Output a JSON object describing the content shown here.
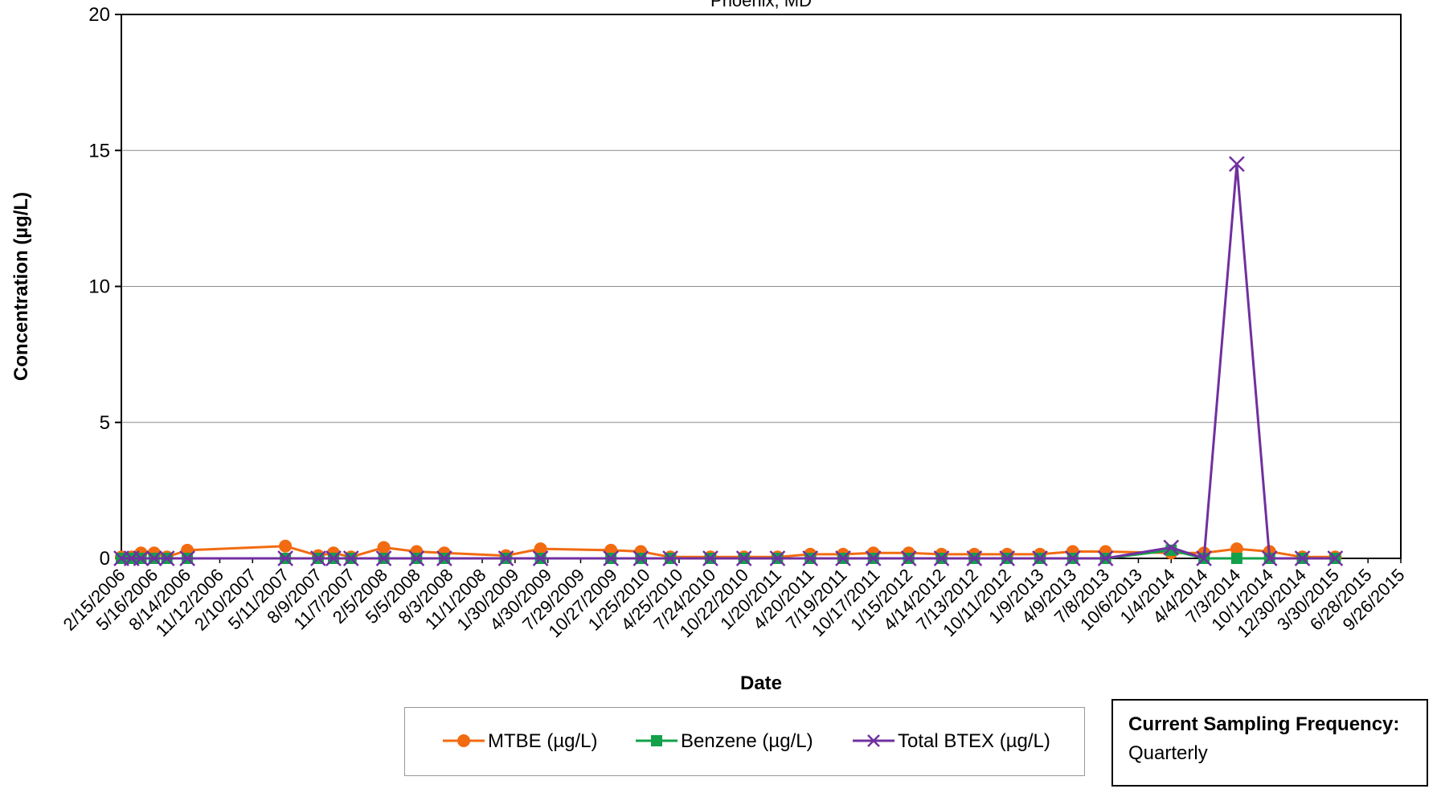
{
  "chart_data": {
    "type": "line",
    "title": "Phoenix, MD",
    "xlabel": "Date",
    "ylabel": "Concentration (µg/L)",
    "ylim": [
      0,
      20
    ],
    "yticks": [
      0,
      5,
      10,
      15,
      20
    ],
    "xlim": [
      "2/15/2006",
      "9/26/2015"
    ],
    "xticks": [
      "2/15/2006",
      "5/16/2006",
      "8/14/2006",
      "11/12/2006",
      "2/10/2007",
      "5/11/2007",
      "8/9/2007",
      "11/7/2007",
      "2/5/2008",
      "5/5/2008",
      "8/3/2008",
      "11/1/2008",
      "1/30/2009",
      "4/30/2009",
      "7/29/2009",
      "10/27/2009",
      "1/25/2010",
      "4/25/2010",
      "7/24/2010",
      "10/22/2010",
      "1/20/2011",
      "4/20/2011",
      "7/19/2011",
      "10/17/2011",
      "1/15/2012",
      "4/14/2012",
      "7/13/2012",
      "10/11/2012",
      "1/9/2013",
      "4/9/2013",
      "7/8/2013",
      "10/6/2013",
      "1/4/2014",
      "4/4/2014",
      "7/3/2014",
      "10/1/2014",
      "12/30/2014",
      "3/30/2015",
      "6/28/2015",
      "9/26/2015"
    ],
    "grid": "horizontal",
    "series": [
      {
        "name": "MTBE (µg/L)",
        "color": "#f26b10",
        "marker": "circle",
        "points": [
          [
            "2/15/2006",
            0.05
          ],
          [
            "3/15/2006",
            0.05
          ],
          [
            "4/10/2006",
            0.2
          ],
          [
            "5/16/2006",
            0.2
          ],
          [
            "6/20/2006",
            0.05
          ],
          [
            "8/15/2006",
            0.3
          ],
          [
            "5/11/2007",
            0.45
          ],
          [
            "8/9/2007",
            0.1
          ],
          [
            "9/20/2007",
            0.2
          ],
          [
            "11/7/2007",
            0.05
          ],
          [
            "2/5/2008",
            0.4
          ],
          [
            "5/5/2008",
            0.25
          ],
          [
            "7/20/2008",
            0.2
          ],
          [
            "1/5/2009",
            0.1
          ],
          [
            "4/10/2009",
            0.35
          ],
          [
            "10/20/2009",
            0.3
          ],
          [
            "1/10/2010",
            0.25
          ],
          [
            "4/1/2010",
            0.05
          ],
          [
            "7/20/2010",
            0.05
          ],
          [
            "10/20/2010",
            0.05
          ],
          [
            "1/20/2011",
            0.05
          ],
          [
            "4/20/2011",
            0.15
          ],
          [
            "7/19/2011",
            0.15
          ],
          [
            "10/10/2011",
            0.2
          ],
          [
            "1/15/2012",
            0.2
          ],
          [
            "4/14/2012",
            0.15
          ],
          [
            "7/13/2012",
            0.15
          ],
          [
            "10/11/2012",
            0.15
          ],
          [
            "1/9/2013",
            0.15
          ],
          [
            "4/9/2013",
            0.25
          ],
          [
            "7/8/2013",
            0.25
          ],
          [
            "1/4/2014",
            0.2
          ],
          [
            "4/4/2014",
            0.2
          ],
          [
            "7/3/2014",
            0.35
          ],
          [
            "10/1/2014",
            0.25
          ],
          [
            "12/30/2014",
            0.05
          ],
          [
            "3/30/2015",
            0.05
          ]
        ]
      },
      {
        "name": "Benzene (µg/L)",
        "color": "#12a14a",
        "marker": "square",
        "points": [
          [
            "2/15/2006",
            0
          ],
          [
            "3/15/2006",
            0
          ],
          [
            "4/10/2006",
            0
          ],
          [
            "5/16/2006",
            0
          ],
          [
            "6/20/2006",
            0
          ],
          [
            "8/15/2006",
            0
          ],
          [
            "5/11/2007",
            0
          ],
          [
            "8/9/2007",
            0
          ],
          [
            "9/20/2007",
            0
          ],
          [
            "11/7/2007",
            0
          ],
          [
            "2/5/2008",
            0
          ],
          [
            "5/5/2008",
            0
          ],
          [
            "7/20/2008",
            0
          ],
          [
            "1/5/2009",
            0
          ],
          [
            "4/10/2009",
            0
          ],
          [
            "10/20/2009",
            0
          ],
          [
            "1/10/2010",
            0
          ],
          [
            "4/1/2010",
            0
          ],
          [
            "7/20/2010",
            0
          ],
          [
            "10/20/2010",
            0
          ],
          [
            "1/20/2011",
            0
          ],
          [
            "4/20/2011",
            0
          ],
          [
            "7/19/2011",
            0
          ],
          [
            "10/10/2011",
            0
          ],
          [
            "1/15/2012",
            0
          ],
          [
            "4/14/2012",
            0
          ],
          [
            "7/13/2012",
            0
          ],
          [
            "10/11/2012",
            0
          ],
          [
            "1/9/2013",
            0
          ],
          [
            "4/9/2013",
            0
          ],
          [
            "7/8/2013",
            0
          ],
          [
            "1/4/2014",
            0.3
          ],
          [
            "4/4/2014",
            0
          ],
          [
            "7/3/2014",
            0
          ],
          [
            "10/1/2014",
            0
          ],
          [
            "12/30/2014",
            0
          ],
          [
            "3/30/2015",
            0
          ]
        ]
      },
      {
        "name": "Total BTEX (µg/L)",
        "color": "#7030a0",
        "marker": "x",
        "points": [
          [
            "2/15/2006",
            0
          ],
          [
            "3/15/2006",
            0
          ],
          [
            "4/10/2006",
            0
          ],
          [
            "5/16/2006",
            0
          ],
          [
            "6/20/2006",
            0
          ],
          [
            "8/15/2006",
            0
          ],
          [
            "5/11/2007",
            0
          ],
          [
            "8/9/2007",
            0
          ],
          [
            "9/20/2007",
            0
          ],
          [
            "11/7/2007",
            0
          ],
          [
            "2/5/2008",
            0
          ],
          [
            "5/5/2008",
            0
          ],
          [
            "7/20/2008",
            0
          ],
          [
            "1/5/2009",
            0
          ],
          [
            "4/10/2009",
            0
          ],
          [
            "10/20/2009",
            0
          ],
          [
            "1/10/2010",
            0
          ],
          [
            "4/1/2010",
            0
          ],
          [
            "7/20/2010",
            0
          ],
          [
            "10/20/2010",
            0
          ],
          [
            "1/20/2011",
            0
          ],
          [
            "4/20/2011",
            0
          ],
          [
            "7/19/2011",
            0
          ],
          [
            "10/10/2011",
            0
          ],
          [
            "1/15/2012",
            0
          ],
          [
            "4/14/2012",
            0
          ],
          [
            "7/13/2012",
            0
          ],
          [
            "10/11/2012",
            0
          ],
          [
            "1/9/2013",
            0
          ],
          [
            "4/9/2013",
            0
          ],
          [
            "7/8/2013",
            0
          ],
          [
            "1/4/2014",
            0.4
          ],
          [
            "4/4/2014",
            0
          ],
          [
            "7/3/2014",
            14.5
          ],
          [
            "10/1/2014",
            0
          ],
          [
            "12/30/2014",
            0
          ],
          [
            "3/30/2015",
            0
          ]
        ]
      }
    ],
    "legend_position": "bottom"
  },
  "sampling": {
    "title": "Current Sampling Frequency:",
    "value": "Quarterly"
  }
}
